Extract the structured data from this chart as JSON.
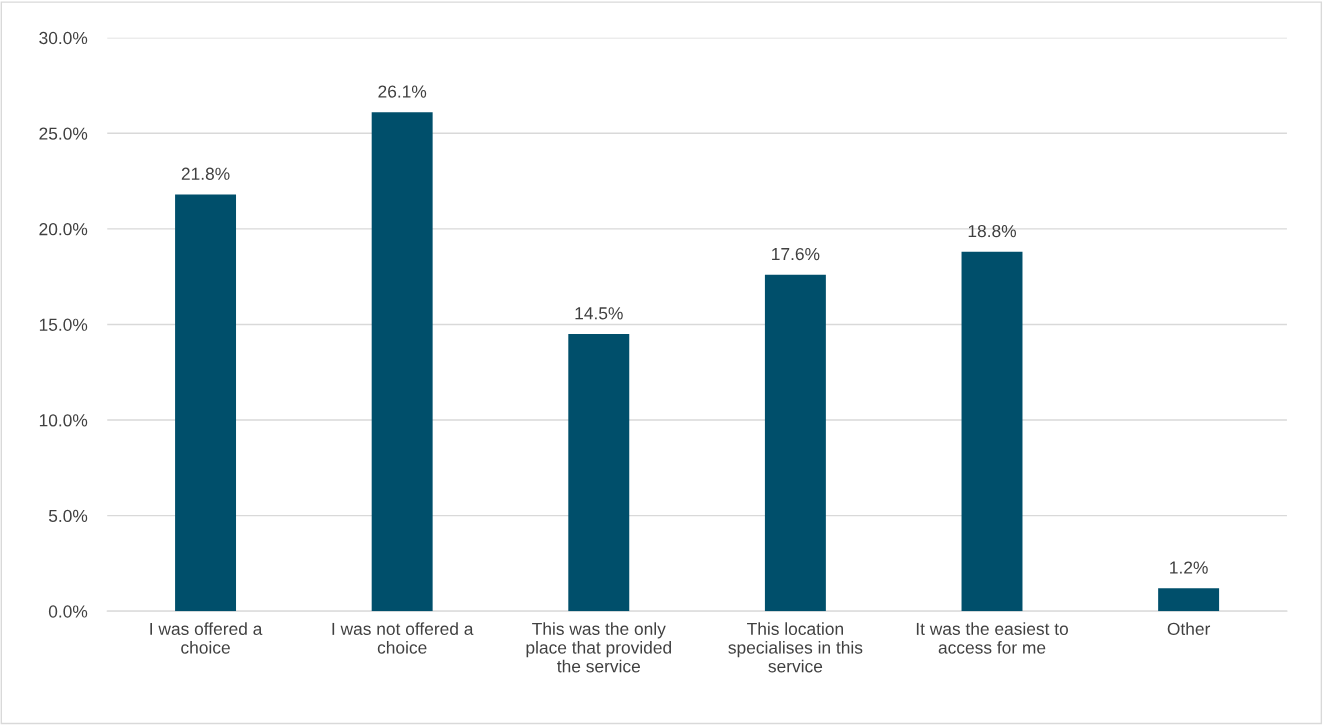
{
  "chart_data": {
    "type": "bar",
    "categories": [
      "I was offered a choice",
      "I was not offered a choice",
      "This was the only place that provided the service",
      "This location specialises in this service",
      "It was the easiest to access for me",
      "Other"
    ],
    "values": [
      21.8,
      26.1,
      14.5,
      17.6,
      18.8,
      1.2
    ],
    "value_labels": [
      "21.8%",
      "26.1%",
      "14.5%",
      "17.6%",
      "18.8%",
      "1.2%"
    ],
    "color": "#004f6b",
    "ylim": [
      0,
      30
    ],
    "yticks": [
      {
        "value": 0,
        "label": "0.0%"
      },
      {
        "value": 5,
        "label": "5.0%"
      },
      {
        "value": 10,
        "label": "10.0%"
      },
      {
        "value": 15,
        "label": "15.0%"
      },
      {
        "value": 20,
        "label": "20.0%"
      },
      {
        "value": 25,
        "label": "25.0%"
      },
      {
        "value": 30,
        "label": "30.0%"
      }
    ],
    "grid": "y",
    "legend": false
  }
}
